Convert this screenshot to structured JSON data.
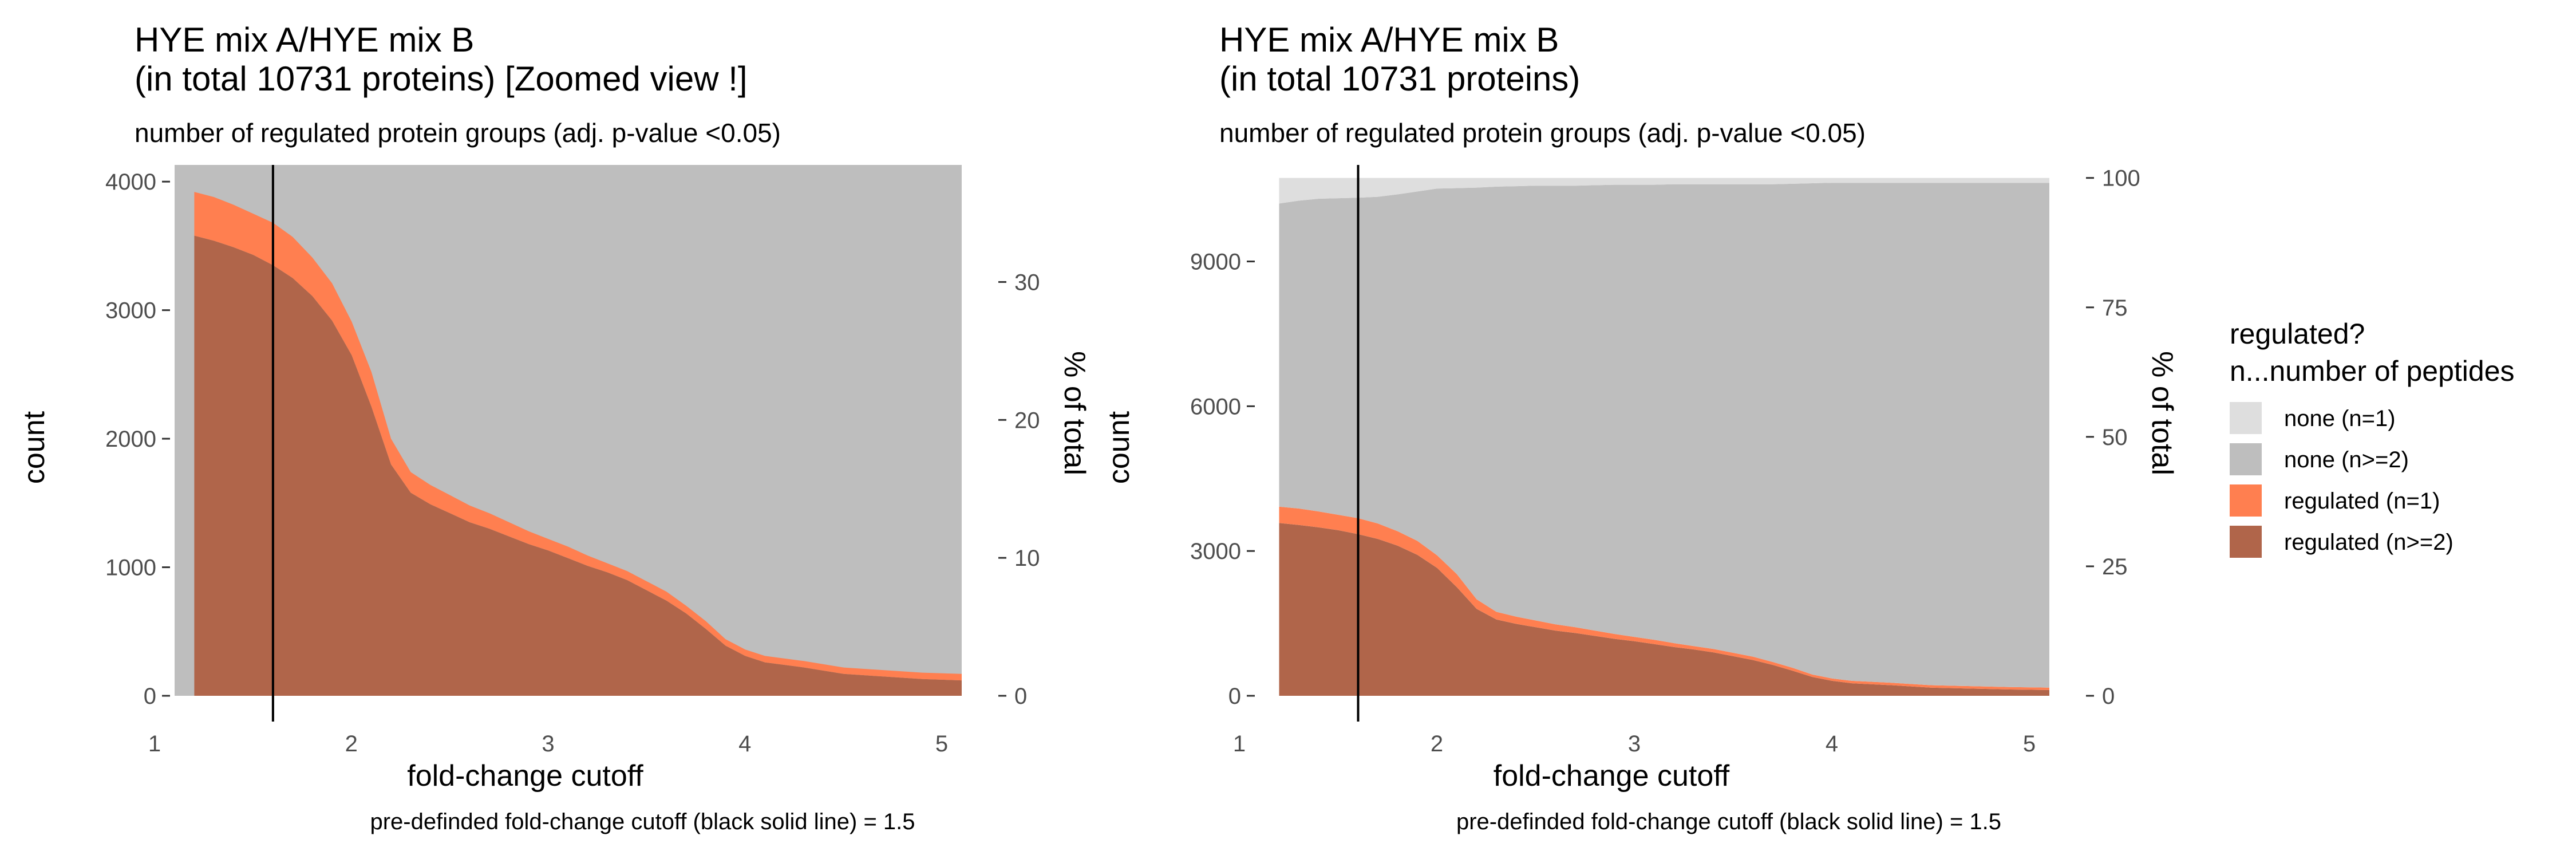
{
  "chart_data": [
    {
      "type": "area",
      "title": "HYE mix A/HYE mix B\n(in total 10731 proteins)  [Zoomed view !]",
      "subtitle": "number of regulated protein groups (adj. p-value <0.05)",
      "xlabel": "fold-change cutoff",
      "ylabel": "count",
      "y2label": "% of total",
      "caption": "pre-definded fold-change cutoff (black solid line) = 1.5",
      "xlim": [
        1,
        5
      ],
      "ylim": [
        0,
        4130
      ],
      "x_ticks": [
        1,
        2,
        3,
        4,
        5
      ],
      "y_ticks": [
        0,
        1000,
        2000,
        3000,
        4000
      ],
      "y2_ticks": [
        0,
        10,
        20,
        30
      ],
      "total": 10731,
      "stacked": true,
      "cutoff_line": 1.5,
      "grid": false,
      "x": [
        1.1,
        1.2,
        1.3,
        1.4,
        1.5,
        1.6,
        1.7,
        1.8,
        1.9,
        2.0,
        2.1,
        2.2,
        2.3,
        2.4,
        2.5,
        2.6,
        2.7,
        2.8,
        2.9,
        3.0,
        3.1,
        3.2,
        3.3,
        3.4,
        3.5,
        3.6,
        3.7,
        3.8,
        3.9,
        4.0,
        4.2,
        4.4,
        4.6,
        4.8,
        5.0
      ],
      "series": [
        {
          "name": "regulated (n>=2)",
          "values": [
            3580,
            3540,
            3490,
            3430,
            3350,
            3250,
            3110,
            2920,
            2650,
            2250,
            1800,
            1580,
            1490,
            1420,
            1350,
            1300,
            1240,
            1180,
            1130,
            1070,
            1010,
            960,
            900,
            820,
            740,
            640,
            520,
            390,
            310,
            260,
            220,
            170,
            150,
            130,
            120
          ]
        },
        {
          "name": "regulated (n=1)",
          "values": [
            340,
            340,
            330,
            320,
            330,
            320,
            300,
            290,
            260,
            270,
            200,
            160,
            150,
            140,
            130,
            120,
            110,
            100,
            90,
            90,
            80,
            70,
            70,
            70,
            70,
            60,
            60,
            50,
            50,
            50,
            50,
            50,
            50,
            50,
            50
          ]
        }
      ],
      "background": {
        "name": "none (n>=2)",
        "color": "#bebebe"
      }
    },
    {
      "type": "area",
      "title": "HYE mix A/HYE mix B\n(in total 10731 proteins)",
      "subtitle": "number of regulated protein groups (adj. p-value <0.05)",
      "xlabel": "fold-change cutoff",
      "ylabel": "count",
      "y2label": "% of total",
      "caption": "pre-definded fold-change cutoff (black solid line) = 1.5",
      "xlim": [
        1,
        5
      ],
      "ylim": [
        0,
        11000
      ],
      "x_ticks": [
        1,
        2,
        3,
        4,
        5
      ],
      "y_ticks": [
        0,
        3000,
        6000,
        9000
      ],
      "y2_ticks": [
        0,
        25,
        50,
        75,
        100
      ],
      "total": 10731,
      "stacked": true,
      "cutoff_line": 1.5,
      "grid": false,
      "x": [
        1.1,
        1.2,
        1.3,
        1.4,
        1.5,
        1.6,
        1.7,
        1.8,
        1.9,
        2.0,
        2.1,
        2.2,
        2.3,
        2.4,
        2.5,
        2.6,
        2.7,
        2.8,
        2.9,
        3.0,
        3.1,
        3.2,
        3.3,
        3.4,
        3.5,
        3.6,
        3.7,
        3.8,
        3.9,
        4.0,
        4.2,
        4.4,
        4.6,
        4.8,
        5.0
      ],
      "series": [
        {
          "name": "regulated (n>=2)",
          "values": [
            3580,
            3540,
            3490,
            3430,
            3350,
            3250,
            3110,
            2920,
            2650,
            2250,
            1800,
            1580,
            1490,
            1420,
            1350,
            1300,
            1240,
            1180,
            1130,
            1070,
            1010,
            960,
            900,
            820,
            740,
            640,
            520,
            390,
            310,
            260,
            220,
            170,
            150,
            130,
            120
          ]
        },
        {
          "name": "regulated (n=1)",
          "values": [
            340,
            340,
            330,
            320,
            330,
            320,
            300,
            290,
            260,
            270,
            200,
            160,
            150,
            140,
            130,
            120,
            110,
            100,
            90,
            90,
            80,
            70,
            70,
            70,
            70,
            60,
            60,
            50,
            50,
            50,
            50,
            50,
            50,
            50,
            50
          ]
        },
        {
          "name": "none (n>=2)",
          "values": [
            6280,
            6380,
            6480,
            6560,
            6640,
            6770,
            6980,
            7240,
            7600,
            8000,
            8530,
            8810,
            8920,
            9010,
            9090,
            9150,
            9230,
            9310,
            9370,
            9430,
            9510,
            9570,
            9630,
            9710,
            9790,
            9900,
            10030,
            10180,
            10270,
            10320,
            10360,
            10410,
            10430,
            10450,
            10460
          ]
        },
        {
          "name": "none (n=1)",
          "values": [
            531,
            471,
            431,
            421,
            411,
            391,
            341,
            281,
            221,
            211,
            201,
            181,
            171,
            161,
            161,
            161,
            151,
            141,
            141,
            141,
            131,
            131,
            131,
            131,
            131,
            131,
            121,
            111,
            101,
            101,
            101,
            101,
            101,
            101,
            101
          ]
        }
      ]
    }
  ],
  "legend": {
    "title_line1": "regulated?",
    "title_line2": " n...number of peptides",
    "items": [
      {
        "label": "none (n=1)",
        "color": "#dedede"
      },
      {
        "label": "none (n>=2)",
        "color": "#bebebe"
      },
      {
        "label": "regulated (n=1)",
        "color": "#ff7f50"
      },
      {
        "label": "regulated (n>=2)",
        "color": "#b0654a"
      }
    ]
  }
}
